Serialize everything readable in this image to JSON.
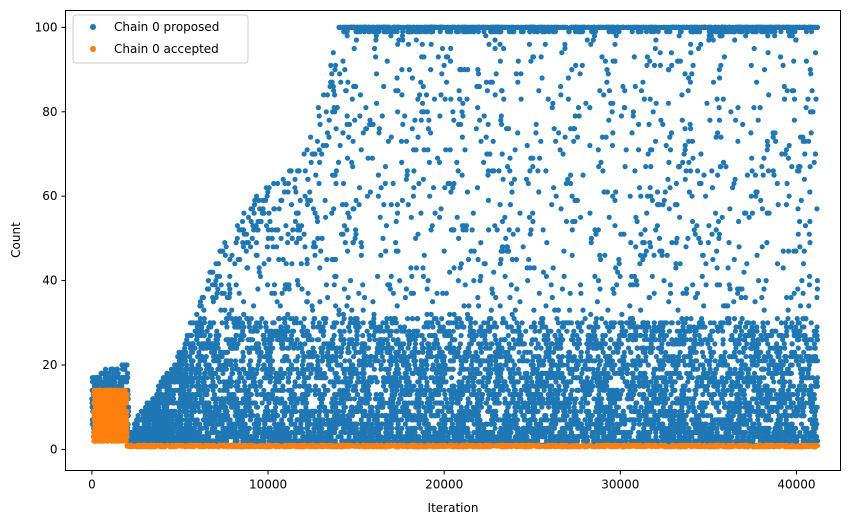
{
  "chart_data": {
    "type": "scatter",
    "title": "",
    "xlabel": "Iteration",
    "ylabel": "Count",
    "xlim": [
      -1500,
      42500
    ],
    "ylim": [
      -5,
      104
    ],
    "xticks": [
      0,
      10000,
      20000,
      30000,
      40000
    ],
    "xtick_labels": [
      "0",
      "10000",
      "20000",
      "30000",
      "40000"
    ],
    "yticks": [
      0,
      20,
      40,
      60,
      80,
      100
    ],
    "ytick_labels": [
      "0",
      "20",
      "40",
      "60",
      "80",
      "100"
    ],
    "grid": false,
    "legend_position": "top-left",
    "series": [
      {
        "name": "Chain 0 proposed",
        "color": "#1f77b4",
        "marker": "circle",
        "x_range": [
          0,
          41200
        ],
        "y_range": [
          1,
          100
        ],
        "description_envelope": [
          {
            "x": 0,
            "y_max": 17
          },
          {
            "x": 2000,
            "y_max": 21
          },
          {
            "x": 2200,
            "y_max": 4
          },
          {
            "x": 5000,
            "y_max": 22
          },
          {
            "x": 7000,
            "y_max": 45
          },
          {
            "x": 9000,
            "y_max": 60
          },
          {
            "x": 12000,
            "y_max": 68
          },
          {
            "x": 14000,
            "y_max": 100
          },
          {
            "x": 20000,
            "y_max": 100
          },
          {
            "x": 30000,
            "y_max": 100
          },
          {
            "x": 41200,
            "y_max": 100
          }
        ]
      },
      {
        "name": "Chain 0 accepted",
        "color": "#ff7f0e",
        "marker": "circle",
        "x_range": [
          0,
          41200
        ],
        "y_range": [
          1,
          14
        ]
      }
    ]
  }
}
